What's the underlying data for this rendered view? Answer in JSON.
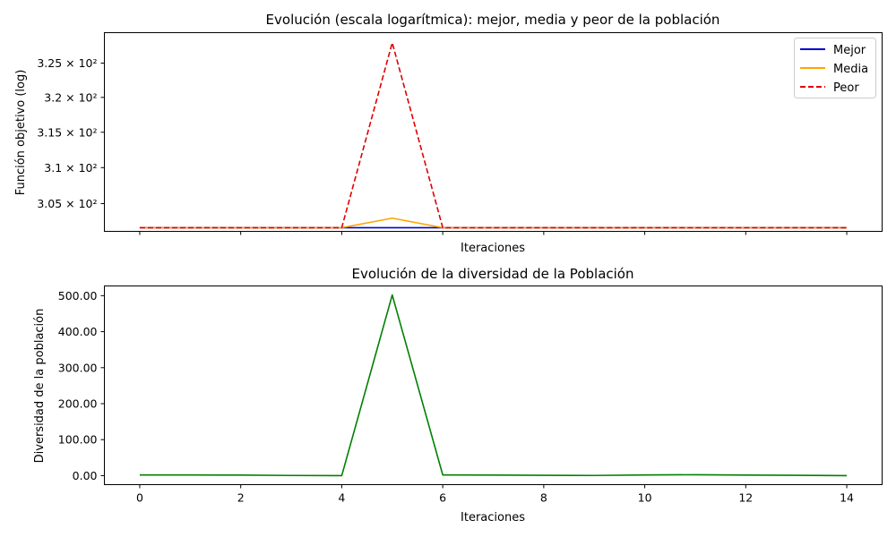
{
  "chart_data": [
    {
      "type": "line",
      "title": "Evolución (escala logarítmica): mejor, media y peor de la población",
      "xlabel": "Iteraciones",
      "ylabel": "Función objetivo (log)",
      "yscale": "log",
      "ylim": [
        301.2,
        329.5
      ],
      "xlim": [
        -0.7,
        14.7
      ],
      "x": [
        0,
        1,
        2,
        3,
        4,
        5,
        6,
        7,
        8,
        9,
        10,
        11,
        12,
        13,
        14
      ],
      "yticks": [
        {
          "value": 305,
          "label": "3.05 × 10²"
        },
        {
          "value": 310,
          "label": "3.1 × 10²"
        },
        {
          "value": 315,
          "label": "3.15 × 10²"
        },
        {
          "value": 320,
          "label": "3.2 × 10²"
        },
        {
          "value": 325,
          "label": "3.25 × 10²"
        }
      ],
      "legend_position": "top-right",
      "grid": false,
      "series": [
        {
          "name": "Mejor",
          "color": "#0000cc",
          "style": "solid",
          "values": [
            301.7,
            301.7,
            301.7,
            301.7,
            301.7,
            301.7,
            301.7,
            301.7,
            301.7,
            301.7,
            301.7,
            301.7,
            301.7,
            301.7,
            301.7
          ]
        },
        {
          "name": "Media",
          "color": "#ffa500",
          "style": "solid",
          "values": [
            301.7,
            301.7,
            301.7,
            301.7,
            301.7,
            303.0,
            301.7,
            301.7,
            301.7,
            301.7,
            301.7,
            301.7,
            301.7,
            301.7,
            301.7
          ]
        },
        {
          "name": "Peor",
          "color": "#e00000",
          "style": "dashed",
          "values": [
            301.7,
            301.7,
            301.7,
            301.7,
            301.7,
            328.0,
            301.7,
            301.7,
            301.7,
            301.7,
            301.7,
            301.7,
            301.7,
            301.7,
            301.7
          ]
        }
      ]
    },
    {
      "type": "line",
      "title": "Evolución de la diversidad de la Población",
      "xlabel": "Iteraciones",
      "ylabel": "Diversidad de la población",
      "ylim": [
        -25,
        527
      ],
      "xlim": [
        -0.7,
        14.7
      ],
      "xticks": [
        0,
        2,
        4,
        6,
        8,
        10,
        12,
        14
      ],
      "yticks": [
        {
          "value": 0,
          "label": "0.00"
        },
        {
          "value": 100,
          "label": "100.00"
        },
        {
          "value": 200,
          "label": "200.00"
        },
        {
          "value": 300,
          "label": "300.00"
        },
        {
          "value": 400,
          "label": "400.00"
        },
        {
          "value": 500,
          "label": "500.00"
        }
      ],
      "grid": false,
      "series": [
        {
          "color": "#008000",
          "style": "solid",
          "x": [
            0,
            1,
            2,
            3,
            4,
            5,
            6,
            7,
            8,
            9,
            10,
            11,
            12,
            13,
            14
          ],
          "values": [
            2,
            2,
            1.5,
            0.5,
            0,
            502,
            2,
            1.5,
            1,
            0.5,
            2,
            2.5,
            1.5,
            1,
            0
          ]
        }
      ]
    }
  ]
}
